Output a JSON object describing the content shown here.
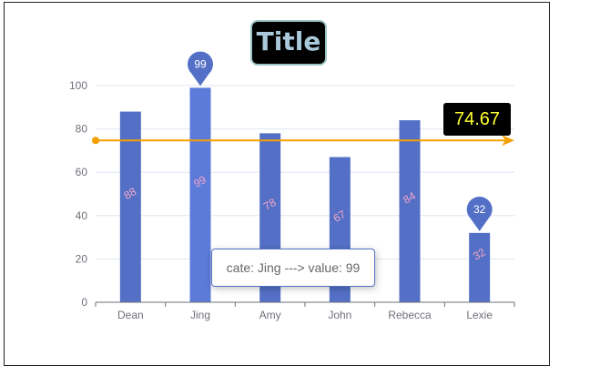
{
  "chart_data": {
    "type": "bar",
    "title": "Title",
    "categories": [
      "Dean",
      "Jing",
      "Amy",
      "John",
      "Rebecca",
      "Lexie"
    ],
    "values": [
      88,
      99,
      78,
      67,
      84,
      32
    ],
    "ylim": [
      0,
      100
    ],
    "yticks": [
      "0",
      "20",
      "40",
      "60",
      "80",
      "100"
    ],
    "xlabel": "",
    "ylabel": "",
    "grid": true,
    "markpoints": [
      {
        "label": "99",
        "category": "Jing",
        "value": 99
      },
      {
        "label": "32",
        "category": "Lexie",
        "value": 32
      }
    ],
    "markline": {
      "value": 74.67,
      "label": "74.67"
    },
    "tooltip": "cate: Jing ---> value: 99",
    "highlighted_category": "Jing"
  },
  "colors": {
    "bar": "#5470c6",
    "bar_highlight": "#5c7bd9",
    "data_label": "#f4a6c8",
    "markline": "#f5a000",
    "markline_label": "#ffff33",
    "grid": "#e0e6f1",
    "axis": "#6e7079"
  }
}
